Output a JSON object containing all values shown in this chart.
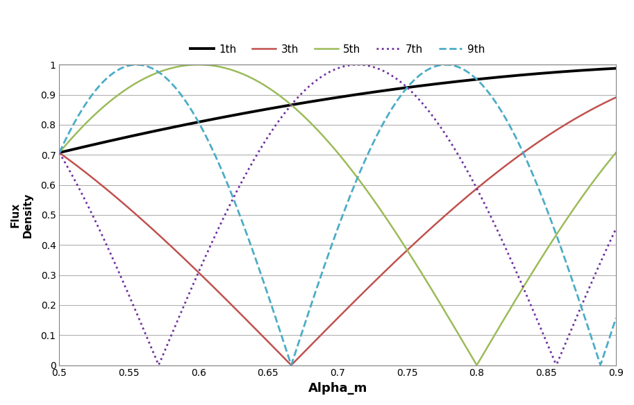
{
  "title": "",
  "xlabel": "Alpha_m",
  "ylabel": "Flux\nDensity",
  "xlim": [
    0.5,
    0.9
  ],
  "ylim": [
    0.0,
    1.0
  ],
  "xticks": [
    0.5,
    0.55,
    0.6,
    0.65,
    0.7,
    0.75,
    0.8,
    0.85,
    0.9
  ],
  "yticks": [
    0.0,
    0.1,
    0.2,
    0.3,
    0.4,
    0.5,
    0.6,
    0.7,
    0.8,
    0.9,
    1.0
  ],
  "ytick_labels": [
    "0",
    "0.1",
    "0.2",
    "0.3",
    "0.4",
    "0.5",
    "0.6",
    "0.7",
    "0.8",
    "0.9",
    "1"
  ],
  "harmonics": [
    1,
    3,
    5,
    7,
    9
  ],
  "harmonic_labels": [
    "1th",
    "3th",
    "5th",
    "7th",
    "9th"
  ],
  "harmonic_colors": [
    "#000000",
    "#c0504d",
    "#9bbb59",
    "#7030a0",
    "#4bacc6"
  ],
  "harmonic_linestyles": [
    "solid",
    "solid",
    "solid",
    "dotted",
    "dashed"
  ],
  "harmonic_linewidths": [
    2.8,
    1.8,
    1.8,
    2.0,
    2.0
  ],
  "background_color": "#ffffff",
  "grid_color": "#b0b0b0",
  "legend_fontsize": 11,
  "axis_label_fontsize": 12,
  "tick_fontsize": 10,
  "xlabel_fontsize": 13,
  "ylabel_fontsize": 11
}
